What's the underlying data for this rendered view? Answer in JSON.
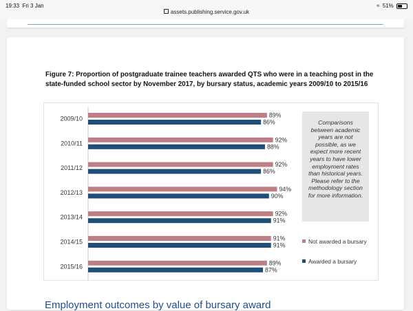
{
  "status": {
    "time": "19:33",
    "date": "Fri 3 Jan",
    "url": "assets.publishing.service.gov.uk",
    "battery": "51%",
    "battery_level": 0.51
  },
  "figure": {
    "title": "Figure 7: Proportion of postgraduate trainee teachers awarded QTS who were in a teaching post in the state-funded school sector by November 2017, by bursary status, academic years 2009/10 to 2015/16",
    "note": "Comparisons between academic years are not possible, as we expect more recent years to have lower employment rates than historical years. Please refer to the methodology section for more information."
  },
  "section_heading": "Employment outcomes by value of bursary award",
  "colors": {
    "not_awarded": "#bd7f85",
    "awarded": "#1f4e79"
  },
  "chart_data": {
    "type": "bar",
    "orientation": "horizontal",
    "categories": [
      "2009/10",
      "2010/11",
      "2011/12",
      "2012/13",
      "2013/14",
      "2014/15",
      "2015/16"
    ],
    "series": [
      {
        "name": "Not awarded a bursary",
        "values": [
          89,
          92,
          92,
          94,
          92,
          91,
          89
        ],
        "labels": [
          "89%",
          "92%",
          "92%",
          "94%",
          "92%",
          "91%",
          "89%"
        ]
      },
      {
        "name": "Awarded a bursary",
        "values": [
          86,
          88,
          86,
          90,
          91,
          91,
          87
        ],
        "labels": [
          "86%",
          "88%",
          "86%",
          "90%",
          "91%",
          "91%",
          "87%"
        ]
      }
    ],
    "xlim": [
      0,
      100
    ],
    "gridlines": false,
    "legend_position": "right"
  }
}
